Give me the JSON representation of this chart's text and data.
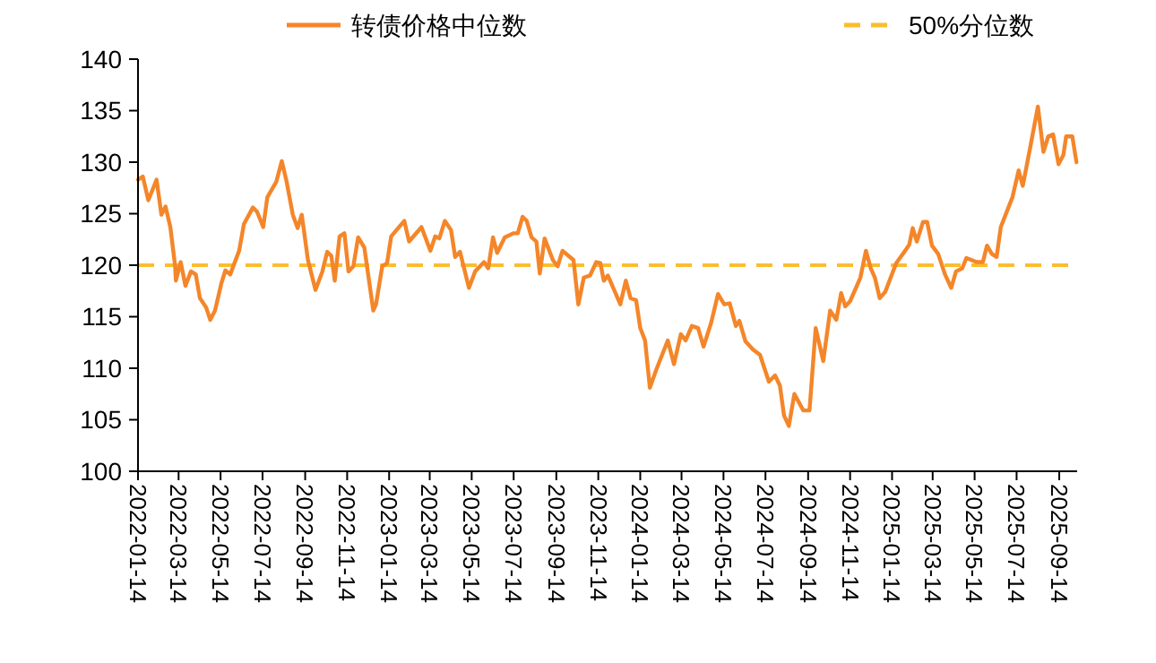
{
  "chart_data": {
    "type": "line",
    "xlim": [
      "2022-01-14",
      "2025-10-10"
    ],
    "xticks": [
      "2022-01-14",
      "2022-03-14",
      "2022-05-14",
      "2022-07-14",
      "2022-09-14",
      "2022-11-14",
      "2023-01-14",
      "2023-03-14",
      "2023-05-14",
      "2023-07-14",
      "2023-09-14",
      "2023-11-14",
      "2024-01-14",
      "2024-03-14",
      "2024-05-14",
      "2024-07-14",
      "2024-09-14",
      "2024-11-14",
      "2025-01-14",
      "2025-03-14",
      "2025-05-14",
      "2025-07-14",
      "2025-09-14"
    ],
    "ylim": [
      100,
      140
    ],
    "yticks": [
      100,
      105,
      110,
      115,
      120,
      125,
      130,
      135,
      140
    ],
    "grid": false,
    "legend": "top",
    "line_style": "solid",
    "marker": "none",
    "ref_lines": [
      {
        "axis": "y",
        "value": 120,
        "label": "50%分位数",
        "color": "#fbbd2e",
        "line_style": "dashed"
      }
    ],
    "series": [
      {
        "name": "转债价格中位数",
        "color": "#f4862a",
        "x": [
          "2022-01-14",
          "2022-01-21",
          "2022-01-29",
          "2022-02-10",
          "2022-02-17",
          "2022-02-23",
          "2022-03-02",
          "2022-03-09",
          "2022-03-10",
          "2022-03-17",
          "2022-03-24",
          "2022-04-01",
          "2022-04-08",
          "2022-04-14",
          "2022-04-23",
          "2022-04-29",
          "2022-05-06",
          "2022-05-15",
          "2022-05-21",
          "2022-05-28",
          "2022-06-10",
          "2022-06-17",
          "2022-06-30",
          "2022-07-06",
          "2022-07-15",
          "2022-07-21",
          "2022-08-03",
          "2022-08-11",
          "2022-08-18",
          "2022-08-27",
          "2022-09-03",
          "2022-09-09",
          "2022-09-18",
          "2022-09-29",
          "2022-10-09",
          "2022-10-16",
          "2022-10-22",
          "2022-10-27",
          "2022-11-03",
          "2022-11-10",
          "2022-11-16",
          "2022-11-23",
          "2022-11-30",
          "2022-12-09",
          "2022-12-22",
          "2022-12-26",
          "2023-01-04",
          "2023-01-11",
          "2023-01-17",
          "2023-02-05",
          "2023-02-12",
          "2023-03-02",
          "2023-03-15",
          "2023-03-22",
          "2023-03-28",
          "2023-04-05",
          "2023-04-14",
          "2023-04-20",
          "2023-04-27",
          "2023-05-10",
          "2023-05-19",
          "2023-06-01",
          "2023-06-07",
          "2023-06-14",
          "2023-06-20",
          "2023-07-01",
          "2023-07-14",
          "2023-07-20",
          "2023-07-27",
          "2023-08-02",
          "2023-08-09",
          "2023-08-16",
          "2023-08-21",
          "2023-08-28",
          "2023-09-09",
          "2023-09-16",
          "2023-09-23",
          "2023-10-09",
          "2023-10-16",
          "2023-10-24",
          "2023-11-02",
          "2023-11-11",
          "2023-11-17",
          "2023-11-22",
          "2023-11-28",
          "2023-12-16",
          "2023-12-24",
          "2023-12-31",
          "2024-01-08",
          "2024-01-14",
          "2024-01-21",
          "2024-01-28",
          "2024-02-06",
          "2024-02-23",
          "2024-03-03",
          "2024-03-13",
          "2024-03-20",
          "2024-03-29",
          "2024-04-07",
          "2024-04-15",
          "2024-04-26",
          "2024-05-06",
          "2024-05-15",
          "2024-05-23",
          "2024-06-01",
          "2024-06-06",
          "2024-06-15",
          "2024-06-26",
          "2024-07-06",
          "2024-07-19",
          "2024-07-28",
          "2024-08-04",
          "2024-08-10",
          "2024-08-17",
          "2024-08-25",
          "2024-09-07",
          "2024-09-16",
          "2024-09-25",
          "2024-10-06",
          "2024-10-16",
          "2024-10-25",
          "2024-11-01",
          "2024-11-07",
          "2024-11-14",
          "2024-11-29",
          "2024-12-07",
          "2024-12-14",
          "2024-12-20",
          "2024-12-27",
          "2025-01-04",
          "2025-01-20",
          "2025-02-02",
          "2025-02-08",
          "2025-02-13",
          "2025-02-19",
          "2025-02-28",
          "2025-03-06",
          "2025-03-13",
          "2025-03-22",
          "2025-04-01",
          "2025-04-10",
          "2025-04-17",
          "2025-04-26",
          "2025-05-02",
          "2025-05-17",
          "2025-05-26",
          "2025-06-01",
          "2025-06-08",
          "2025-06-15",
          "2025-06-21",
          "2025-07-08",
          "2025-07-17",
          "2025-07-23",
          "2025-08-03",
          "2025-08-14",
          "2025-08-22",
          "2025-08-29",
          "2025-09-05",
          "2025-09-13",
          "2025-09-20",
          "2025-09-24",
          "2025-10-03",
          "2025-10-09"
        ],
        "values": [
          128.3,
          128.6,
          126.3,
          128.3,
          124.9,
          125.7,
          123.7,
          119.9,
          118.5,
          120.3,
          118.0,
          119.4,
          119.1,
          116.8,
          115.9,
          114.7,
          115.6,
          118.2,
          119.5,
          119.1,
          121.4,
          124.0,
          125.6,
          125.2,
          123.7,
          126.6,
          128.1,
          130.1,
          128.1,
          124.9,
          123.6,
          124.9,
          120.5,
          117.6,
          119.4,
          121.3,
          120.9,
          118.5,
          122.8,
          123.1,
          119.4,
          119.9,
          122.7,
          121.7,
          115.6,
          116.2,
          119.9,
          120.2,
          122.8,
          124.3,
          122.3,
          123.7,
          121.4,
          122.8,
          122.6,
          124.3,
          123.4,
          120.8,
          121.3,
          117.8,
          119.4,
          120.3,
          119.7,
          122.7,
          121.2,
          122.7,
          123.1,
          123.1,
          124.7,
          124.3,
          122.7,
          122.3,
          119.2,
          122.6,
          120.5,
          119.9,
          121.4,
          120.5,
          116.2,
          118.8,
          119.0,
          120.3,
          120.2,
          118.5,
          119.0,
          116.2,
          118.5,
          116.8,
          116.6,
          113.9,
          112.7,
          108.1,
          109.8,
          112.7,
          110.4,
          113.3,
          112.7,
          114.1,
          113.9,
          112.1,
          114.4,
          117.2,
          116.2,
          116.3,
          114.1,
          114.6,
          112.6,
          111.8,
          111.3,
          108.7,
          109.3,
          108.3,
          105.4,
          104.4,
          107.5,
          105.9,
          105.9,
          113.9,
          110.7,
          115.6,
          114.7,
          117.3,
          116.0,
          116.5,
          118.8,
          121.4,
          119.7,
          118.8,
          116.8,
          117.4,
          120.2,
          121.4,
          122.0,
          123.6,
          122.3,
          124.2,
          124.2,
          121.9,
          121.1,
          119.1,
          117.8,
          119.4,
          119.7,
          120.7,
          120.3,
          120.3,
          121.9,
          121.1,
          120.8,
          123.7,
          126.6,
          129.2,
          127.7,
          131.5,
          135.4,
          131.0,
          132.5,
          132.7,
          129.8,
          130.7,
          132.5,
          132.5,
          130.0
        ]
      }
    ]
  }
}
